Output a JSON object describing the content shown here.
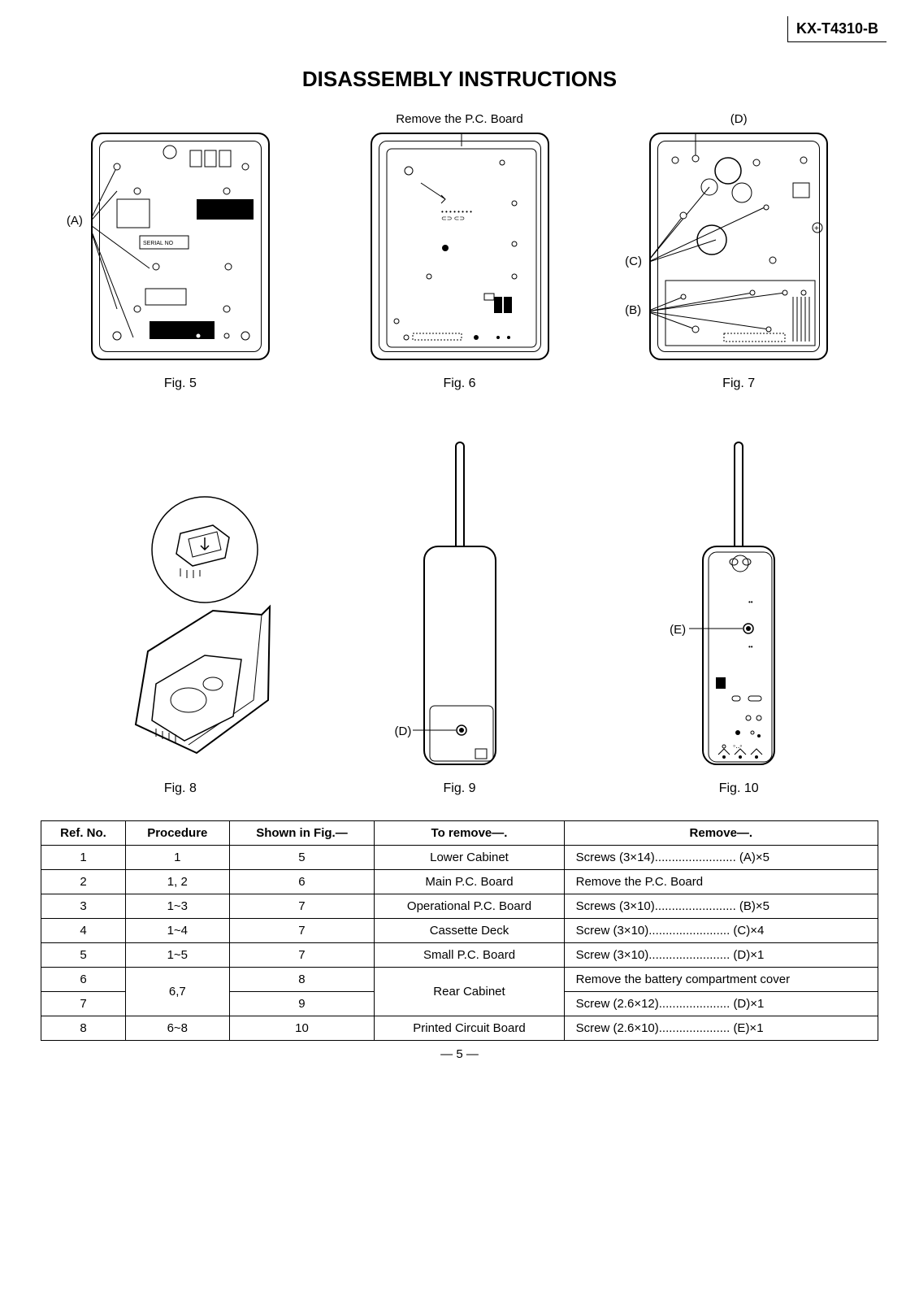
{
  "model_number": "KX-T4310-B",
  "page_title": "DISASSEMBLY INSTRUCTIONS",
  "page_number": "— 5 —",
  "figures": {
    "row1": [
      {
        "caption": "Fig. 5",
        "top_label": "",
        "callouts": [
          {
            "text": "(A)",
            "pos": "left"
          }
        ]
      },
      {
        "caption": "Fig. 6",
        "top_label": "Remove the P.C. Board",
        "callouts": []
      },
      {
        "caption": "Fig. 7",
        "top_label": "(D)",
        "callouts": [
          {
            "text": "(C)",
            "pos": "left"
          },
          {
            "text": "(B)",
            "pos": "left-low"
          }
        ]
      }
    ],
    "row2": [
      {
        "caption": "Fig. 8",
        "top_label": "",
        "callouts": []
      },
      {
        "caption": "Fig. 9",
        "top_label": "",
        "callouts": [
          {
            "text": "(D)",
            "pos": "left-low"
          }
        ]
      },
      {
        "caption": "Fig. 10",
        "top_label": "",
        "callouts": [
          {
            "text": "(E)",
            "pos": "left"
          }
        ]
      }
    ]
  },
  "table": {
    "headers": [
      "Ref. No.",
      "Procedure",
      "Shown in Fig.—",
      "To remove—.",
      "Remove—."
    ],
    "rows": [
      {
        "ref": "1",
        "proc": "1",
        "fig": "5",
        "remove_target": "Lower Cabinet",
        "remove_action": "Screws  (3×14)........................ (A)×5"
      },
      {
        "ref": "2",
        "proc": "1, 2",
        "fig": "6",
        "remove_target": "Main P.C. Board",
        "remove_action": "Remove the P.C. Board"
      },
      {
        "ref": "3",
        "proc": "1~3",
        "fig": "7",
        "remove_target": "Operational P.C. Board",
        "remove_action": "Screws  (3×10)........................ (B)×5"
      },
      {
        "ref": "4",
        "proc": "1~4",
        "fig": "7",
        "remove_target": "Cassette Deck",
        "remove_action": "Screw   (3×10)........................ (C)×4"
      },
      {
        "ref": "5",
        "proc": "1~5",
        "fig": "7",
        "remove_target": "Small P.C. Board",
        "remove_action": "Screw   (3×10)........................ (D)×1"
      },
      {
        "ref": "6",
        "proc": "6,7",
        "fig": "8",
        "remove_target": "Rear Cabinet",
        "remove_action": "Remove the battery compartment cover",
        "rowspan_proc": 2,
        "rowspan_target": 2
      },
      {
        "ref": "7",
        "proc": null,
        "fig": "9",
        "remove_target": null,
        "remove_action": "Screw   (2.6×12)..................... (D)×1"
      },
      {
        "ref": "8",
        "proc": "6~8",
        "fig": "10",
        "remove_target": "Printed Circuit Board",
        "remove_action": "Screw   (2.6×10)..................... (E)×1"
      }
    ]
  }
}
